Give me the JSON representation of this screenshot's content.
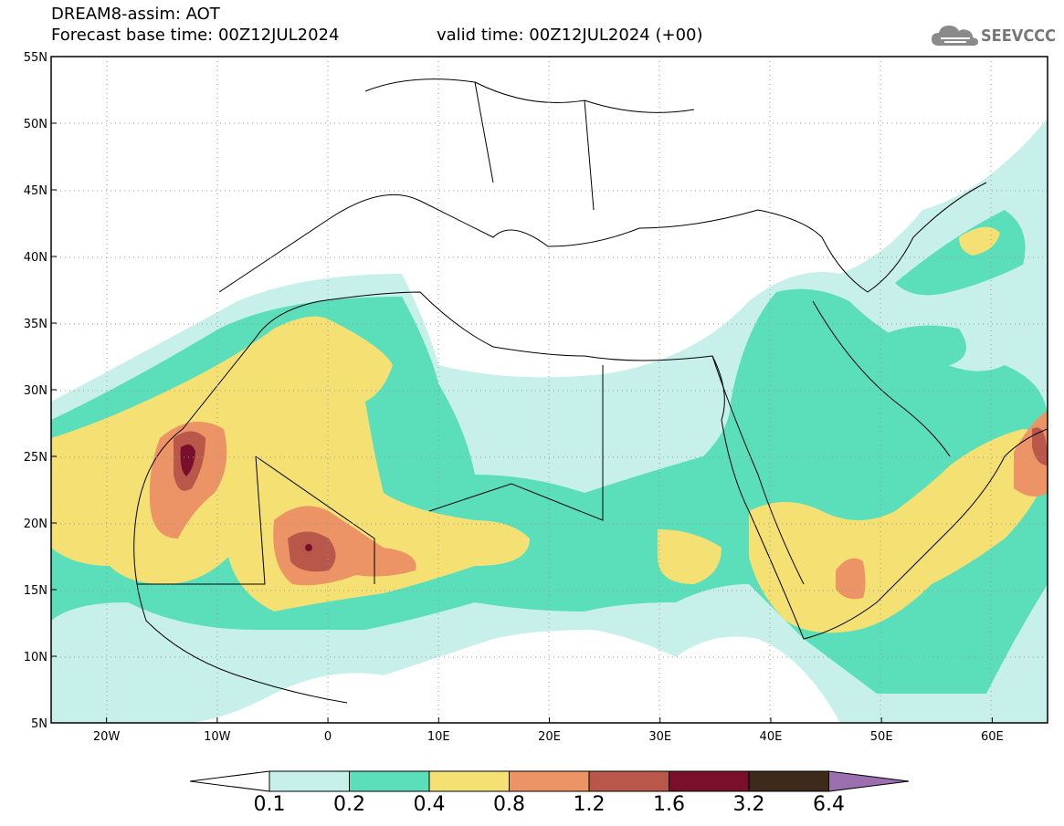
{
  "title": {
    "line1": "DREAM8-assim: AOT",
    "line2": "Forecast base time: 00Z12JUL2024",
    "valid": "valid time: 00Z12JUL2024 (+00)"
  },
  "logo": {
    "text": "SEEVCCC",
    "icon": "cloud-logo-icon"
  },
  "map": {
    "lat_labels": [
      "55N",
      "50N",
      "45N",
      "40N",
      "35N",
      "30N",
      "25N",
      "20N",
      "15N",
      "10N",
      "5N"
    ],
    "lon_labels": [
      "20W",
      "10W",
      "0",
      "10E",
      "20E",
      "30E",
      "40E",
      "50E",
      "60E"
    ],
    "lon_range": [
      -25,
      65
    ],
    "lat_range": [
      5,
      55
    ]
  },
  "colorbar": {
    "levels": [
      "0.1",
      "0.2",
      "0.4",
      "0.8",
      "1.2",
      "1.6",
      "3.2",
      "6.4"
    ],
    "colors": [
      "#c8f0ea",
      "#5bdfba",
      "#f5e173",
      "#ec9465",
      "#b8574a",
      "#7a0f2c",
      "#3d2a1a",
      "#9b6fb0"
    ]
  }
}
